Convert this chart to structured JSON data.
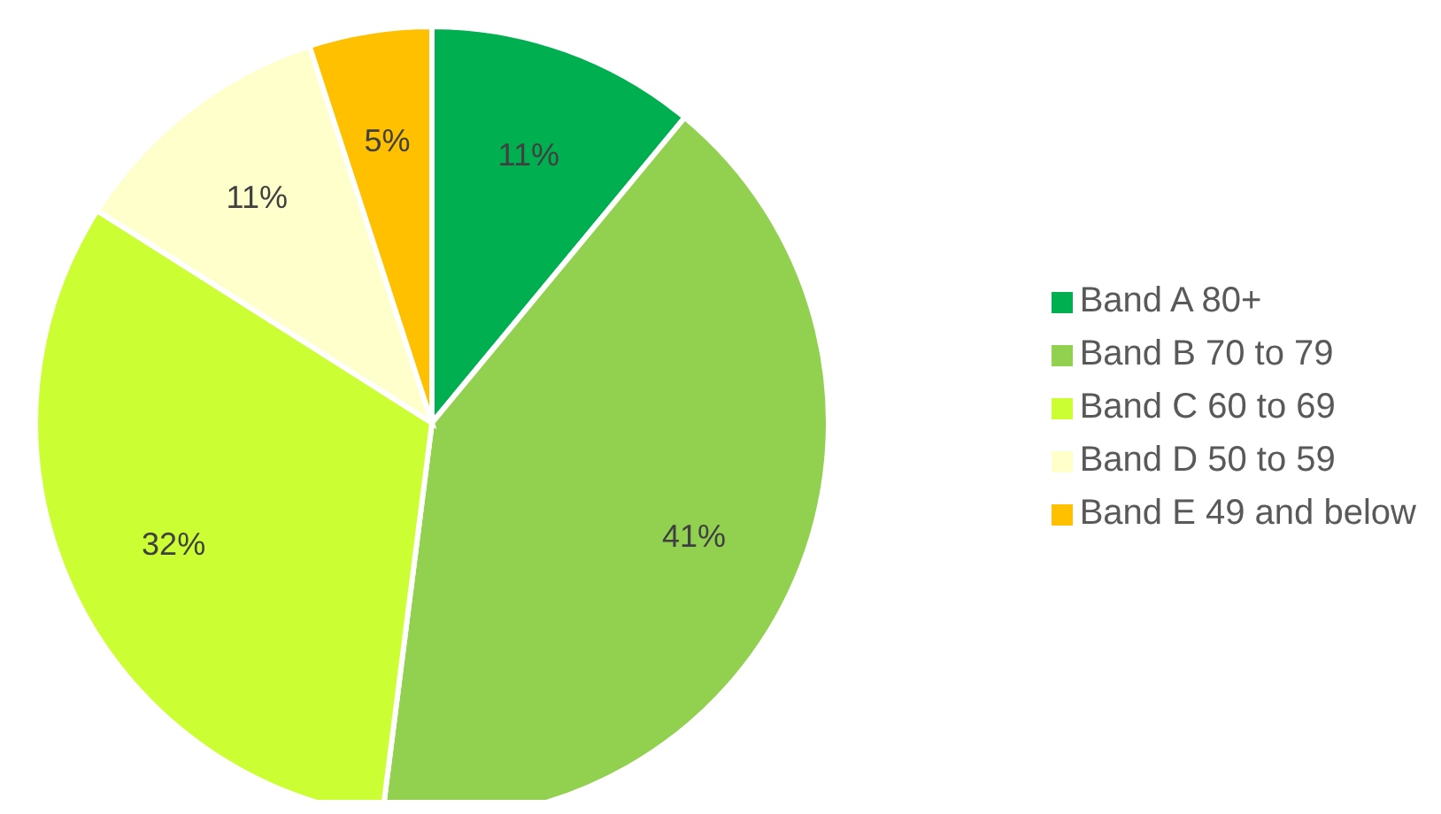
{
  "chart_data": {
    "type": "pie",
    "categories": [
      "Band A 80+",
      "Band B 70 to 79",
      "Band C 60 to 69",
      "Band D 50 to 59",
      "Band E 49 and below"
    ],
    "values": [
      11,
      41,
      32,
      11,
      5
    ],
    "colors": [
      "#00b050",
      "#92d050",
      "#ccff33",
      "#ffffcc",
      "#ffc000"
    ],
    "value_labels": [
      "11%",
      "41%",
      "32%",
      "11%",
      "5%"
    ],
    "legend": "right"
  }
}
